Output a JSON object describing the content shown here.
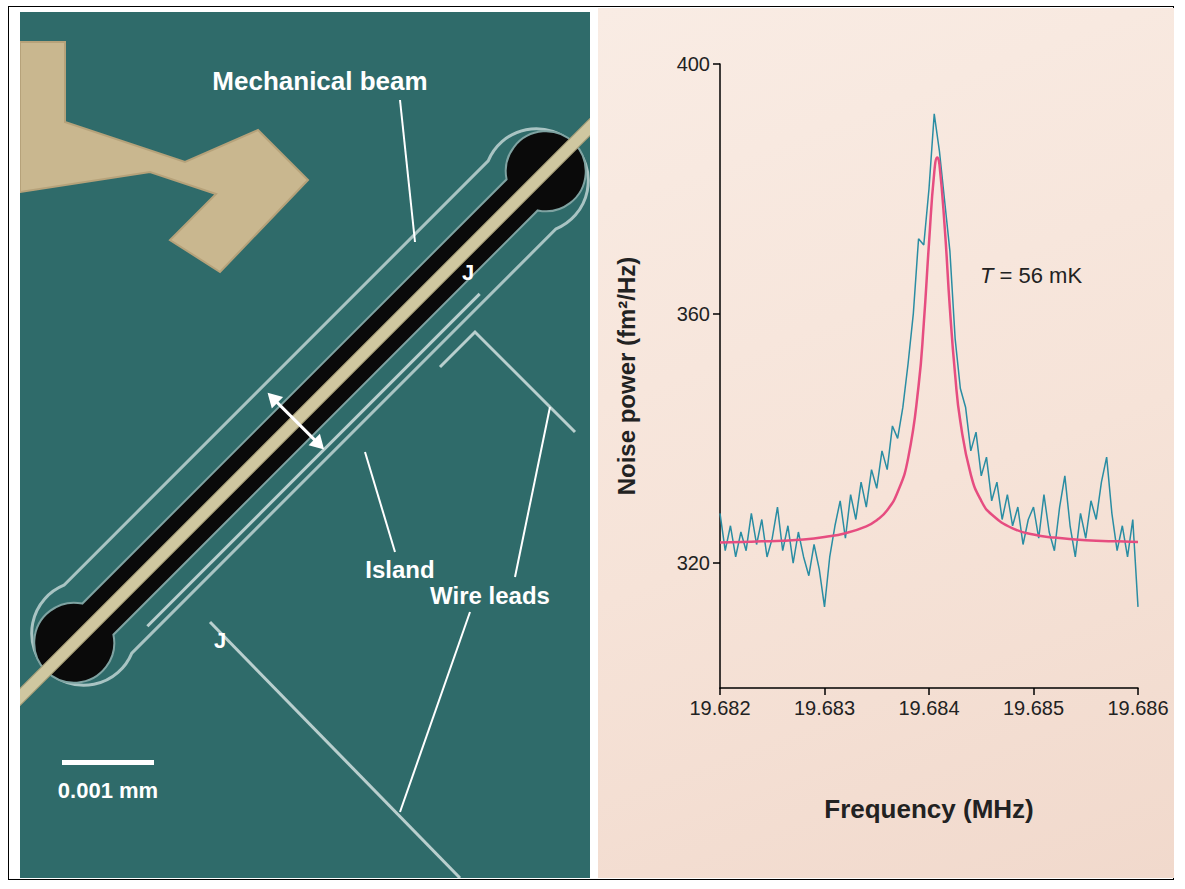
{
  "chart_data": {
    "type": "line",
    "x_label": "Frequency (MHz)",
    "y_label": "Noise power (fm²/Hz)",
    "annotations": [
      "T = 56 mK"
    ],
    "xlim": [
      19.682,
      19.686
    ],
    "xticks": [
      19.682,
      19.683,
      19.684,
      19.685,
      19.686
    ],
    "ylim": [
      300,
      400
    ],
    "yticks": [
      320,
      360,
      400
    ],
    "grid": false,
    "series": [
      {
        "color": "#2a8da3",
        "line_style": "solid",
        "x": [
          19.682,
          19.68205,
          19.6821,
          19.68215,
          19.6822,
          19.68225,
          19.6823,
          19.68235,
          19.6824,
          19.68245,
          19.6825,
          19.68255,
          19.6826,
          19.68265,
          19.6827,
          19.68275,
          19.6828,
          19.68285,
          19.6829,
          19.68295,
          19.683,
          19.68305,
          19.6831,
          19.68315,
          19.6832,
          19.68325,
          19.6833,
          19.68335,
          19.6834,
          19.68345,
          19.6835,
          19.68355,
          19.6836,
          19.68365,
          19.6837,
          19.68375,
          19.6838,
          19.68385,
          19.6839,
          19.68395,
          19.684,
          19.68405,
          19.6841,
          19.68415,
          19.6842,
          19.68425,
          19.6843,
          19.68435,
          19.6844,
          19.68445,
          19.6845,
          19.68455,
          19.6846,
          19.68465,
          19.6847,
          19.68475,
          19.6848,
          19.68485,
          19.6849,
          19.68495,
          19.685,
          19.68505,
          19.6851,
          19.68515,
          19.6852,
          19.68525,
          19.6853,
          19.68535,
          19.6854,
          19.68545,
          19.6855,
          19.68555,
          19.6856,
          19.68565,
          19.6857,
          19.68575,
          19.6858,
          19.68585,
          19.6859,
          19.68595,
          19.686
        ],
        "values": [
          328,
          322,
          326,
          321,
          325,
          322,
          328,
          323,
          327,
          321,
          324,
          329,
          322,
          326,
          320,
          325,
          321,
          318,
          323,
          319,
          313,
          321,
          326,
          330,
          324,
          331,
          327,
          333,
          329,
          335,
          332,
          338,
          335,
          342,
          340,
          345,
          352,
          360,
          372,
          371,
          380,
          392,
          386,
          378,
          370,
          356,
          348,
          345,
          338,
          341,
          334,
          337,
          330,
          333,
          327,
          331,
          326,
          329,
          323,
          327,
          329,
          324,
          331,
          325,
          322,
          329,
          334,
          326,
          321,
          328,
          324,
          330,
          327,
          333,
          337,
          328,
          322,
          326,
          321,
          327,
          313
        ]
      },
      {
        "color": "#e64d80",
        "line_style": "solid",
        "x": [
          19.682,
          19.6822,
          19.6824,
          19.6826,
          19.6828,
          19.683,
          19.6832,
          19.6834,
          19.6835,
          19.6836,
          19.6837,
          19.6838,
          19.6839,
          19.68395,
          19.684,
          19.68405,
          19.68408,
          19.6841,
          19.68415,
          19.6842,
          19.68425,
          19.6843,
          19.6844,
          19.6845,
          19.6846,
          19.6848,
          19.685,
          19.6852,
          19.6854,
          19.6856,
          19.6858,
          19.686
        ],
        "values": [
          323.3,
          323.4,
          323.5,
          323.6,
          323.8,
          324.2,
          324.8,
          325.9,
          326.9,
          328.5,
          331.4,
          336.8,
          348.4,
          358.4,
          371.3,
          382.6,
          385,
          383.9,
          373.9,
          360.8,
          350.2,
          342.7,
          334.2,
          330.0,
          327.8,
          325.6,
          324.6,
          324.1,
          323.8,
          323.6,
          323.5,
          323.4
        ]
      }
    ]
  },
  "diagram": {
    "beam_label": "Mechanical beam",
    "island_label": "Island",
    "leads_label": "Wire leads",
    "junction_labels": [
      "J",
      "J"
    ],
    "scale_bar": "0.001 mm"
  }
}
